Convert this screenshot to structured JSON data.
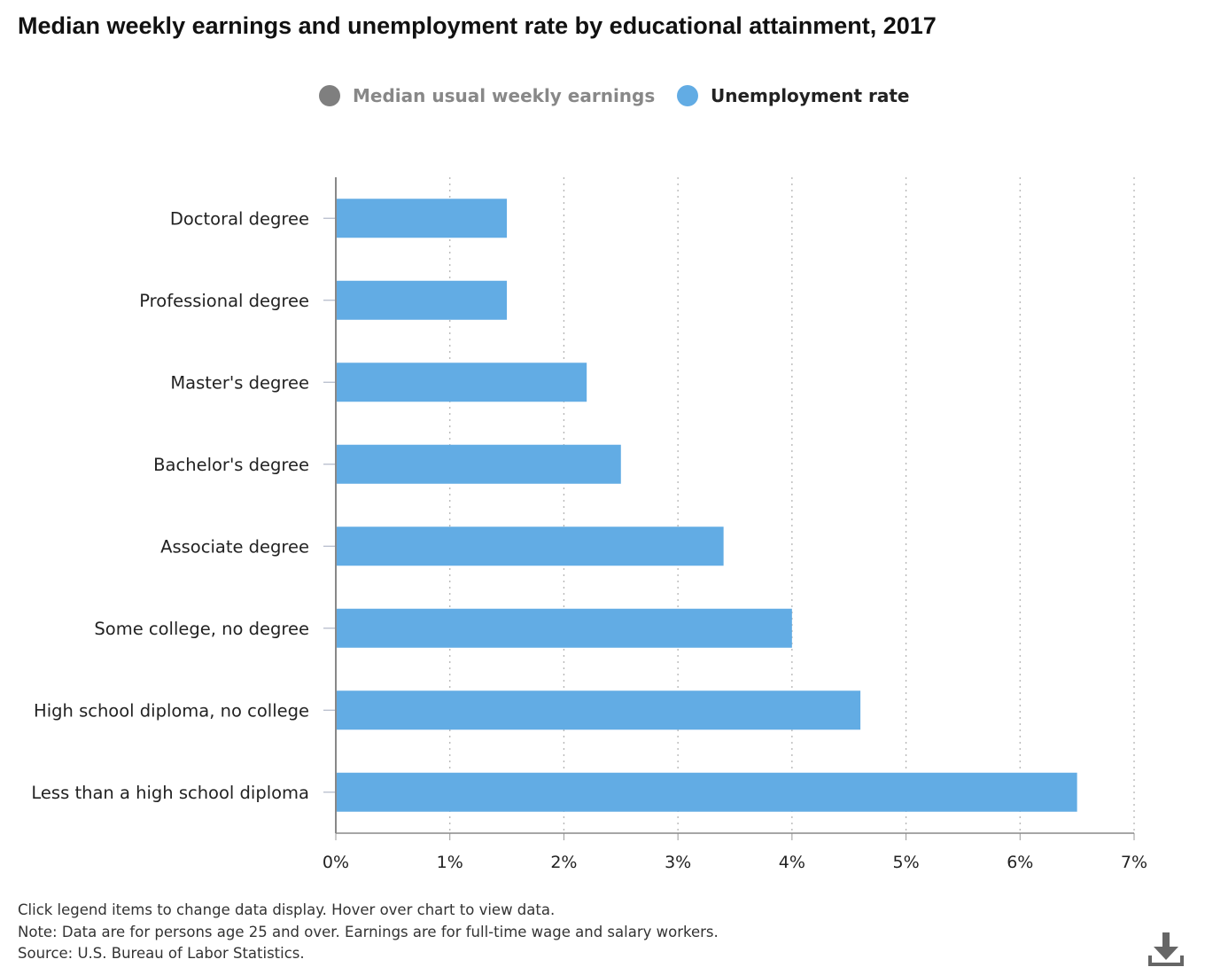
{
  "title": "Median weekly earnings and unemployment rate by educational attainment, 2017",
  "legend": [
    {
      "label": "Median usual weekly earnings",
      "color": "#7f7f7f",
      "active": false
    },
    {
      "label": "Unemployment rate",
      "color": "#62ace4",
      "active": true
    }
  ],
  "chart_data": {
    "type": "bar",
    "orientation": "horizontal",
    "categories": [
      "Doctoral degree",
      "Professional degree",
      "Master's degree",
      "Bachelor's degree",
      "Associate degree",
      "Some college, no degree",
      "High school diploma, no college",
      "Less than a high school diploma"
    ],
    "series": [
      {
        "name": "Unemployment rate",
        "color": "#62ace4",
        "values": [
          1.5,
          1.5,
          2.2,
          2.5,
          3.4,
          4.0,
          4.6,
          6.5
        ]
      }
    ],
    "xlim": [
      0,
      7
    ],
    "xticks": [
      "0%",
      "1%",
      "2%",
      "3%",
      "4%",
      "5%",
      "6%",
      "7%"
    ],
    "grid": "vertical dotted",
    "legend_position": "top-center"
  },
  "footer": {
    "instructions": "Click legend items to change data display. Hover over chart to view data.",
    "note": "Note: Data are for persons age 25 and over. Earnings are for full-time wage and salary workers.",
    "source": "Source: U.S. Bureau of Labor Statistics."
  },
  "icons": {
    "download": "download-icon"
  }
}
